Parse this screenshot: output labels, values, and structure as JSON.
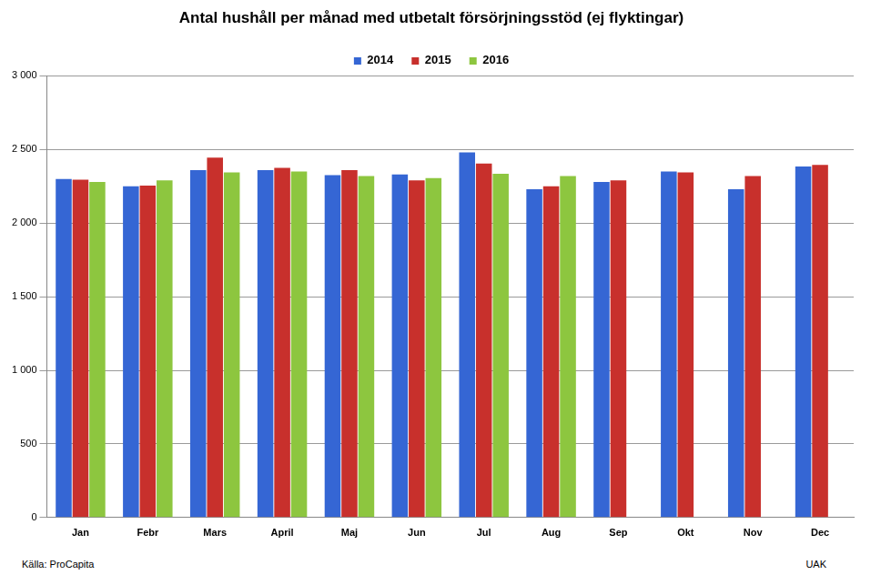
{
  "chart_data": {
    "type": "bar",
    "title": "Antal hushåll per månad med utbetalt försörjningsstöd (ej flyktingar)",
    "annotations": [
      "Källa: ProCapita",
      "UAK"
    ],
    "categories": [
      "Jan",
      "Febr",
      "Mars",
      "April",
      "Maj",
      "Jun",
      "Jul",
      "Aug",
      "Sep",
      "Okt",
      "Nov",
      "Dec"
    ],
    "series": [
      {
        "name": "2014",
        "color": "#3566d4",
        "values": [
          2300,
          2250,
          2360,
          2360,
          2325,
          2330,
          2480,
          2230,
          2280,
          2350,
          2230,
          2385
        ]
      },
      {
        "name": "2015",
        "color": "#c8302c",
        "values": [
          2295,
          2255,
          2445,
          2375,
          2360,
          2290,
          2405,
          2250,
          2290,
          2345,
          2320,
          2395
        ]
      },
      {
        "name": "2016",
        "color": "#8dc63f",
        "values": [
          2280,
          2290,
          2345,
          2350,
          2320,
          2305,
          2335,
          2320,
          null,
          null,
          null,
          null
        ]
      }
    ],
    "ylim": [
      0,
      3000
    ],
    "yticks": [
      0,
      500,
      {
        "value": 1000,
        "label": "1 000"
      },
      {
        "value": 1500,
        "label": "1 500"
      },
      {
        "value": 2000,
        "label": "2 000"
      },
      {
        "value": 2500,
        "label": "2 500"
      },
      {
        "value": 3000,
        "label": "3 000"
      }
    ],
    "grid": true,
    "legend": "top"
  }
}
